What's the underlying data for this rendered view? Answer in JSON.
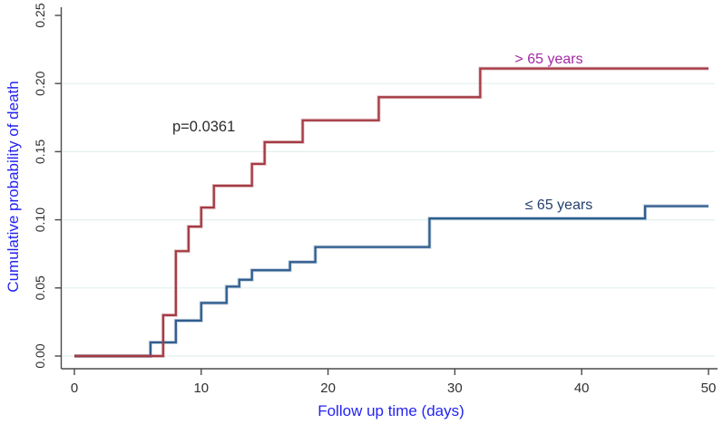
{
  "chart_data": {
    "type": "line",
    "subtype": "step",
    "title": "",
    "xlabel": "Follow up time (days)",
    "ylabel": "Cumulative probability of death",
    "axis_title_color": "#2424f0",
    "tick_label_color": "#303030",
    "axis_line_color": "#4a4a4a",
    "gridline_color": "#e3f1f0",
    "grid": "horizontal",
    "xlim": [
      0,
      50
    ],
    "ylim": [
      0,
      0.25
    ],
    "x_ticks": [
      "0",
      "10",
      "20",
      "30",
      "40",
      "50"
    ],
    "y_ticks": [
      "0.00",
      "0.05",
      "0.10",
      "0.15",
      "0.20",
      "0.25"
    ],
    "legend_position": "inline-annotations",
    "annotations": [
      {
        "text": "p=0.0361",
        "color": "#2b2b2b",
        "x_day": 7.7,
        "y_prob": 0.168
      }
    ],
    "series": [
      {
        "name": "> 65 years",
        "color": "#a43b44",
        "label_color": "#a428a4",
        "label_day": 37.4,
        "label_prob": 0.216,
        "end_x": 50,
        "steps": [
          [
            0,
            0
          ],
          [
            7,
            0.03
          ],
          [
            8,
            0.077
          ],
          [
            9,
            0.095
          ],
          [
            10,
            0.109
          ],
          [
            11,
            0.125
          ],
          [
            14,
            0.141
          ],
          [
            15,
            0.157
          ],
          [
            18,
            0.173
          ],
          [
            24,
            0.19
          ],
          [
            32,
            0.211
          ]
        ]
      },
      {
        "name": "≤ 65 years",
        "color": "#2f5d8e",
        "label_color": "#24406e",
        "label_day": 38.2,
        "label_prob": 0.109,
        "end_x": 50,
        "steps": [
          [
            0,
            0
          ],
          [
            6,
            0.01
          ],
          [
            8,
            0.026
          ],
          [
            10,
            0.039
          ],
          [
            12,
            0.051
          ],
          [
            13,
            0.056
          ],
          [
            14,
            0.063
          ],
          [
            17,
            0.069
          ],
          [
            19,
            0.08
          ],
          [
            28,
            0.101
          ],
          [
            45,
            0.11
          ]
        ]
      }
    ]
  }
}
